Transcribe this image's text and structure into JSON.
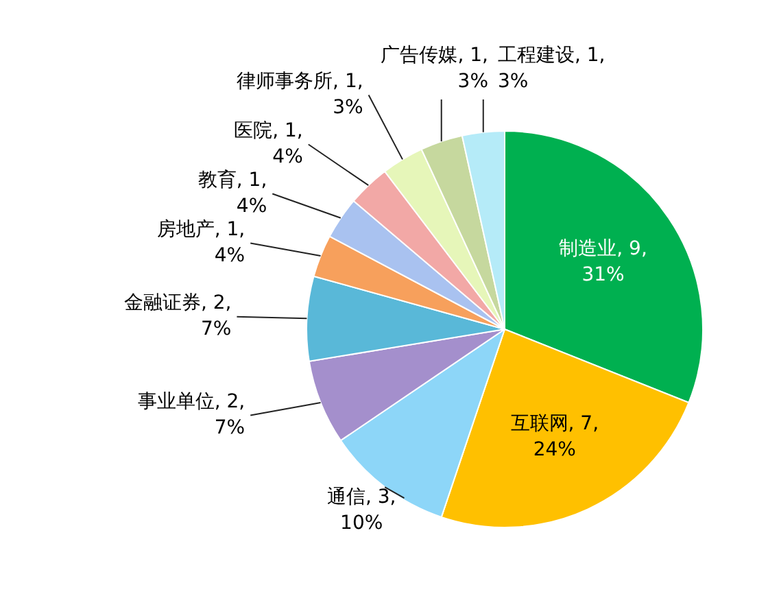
{
  "chart_data": {
    "type": "pie",
    "categories": [
      "制造业",
      "互联网",
      "通信",
      "事业单位",
      "金融证券",
      "房地产",
      "教育",
      "医院",
      "律师事务所",
      "广告传媒",
      "工程建设"
    ],
    "values": [
      9,
      7,
      3,
      2,
      2,
      1,
      1,
      1,
      1,
      1,
      1
    ],
    "value_labels": [
      "9, 31%",
      "7, 24%",
      "3, 10%",
      "2, 7%",
      "2, 7%",
      "1, 4%",
      "1, 4%",
      "1, 4%",
      "1, 3%",
      "1, 3%",
      "1, 3%"
    ],
    "colors": [
      "#00b050",
      "#ffc000",
      "#8dd6f8",
      "#a48fcc",
      "#59b8d8",
      "#f7a05c",
      "#a9c2f0",
      "#f2a8a6",
      "#e6f6b9",
      "#c6d89e",
      "#b5ebf8"
    ],
    "legend": false
  }
}
